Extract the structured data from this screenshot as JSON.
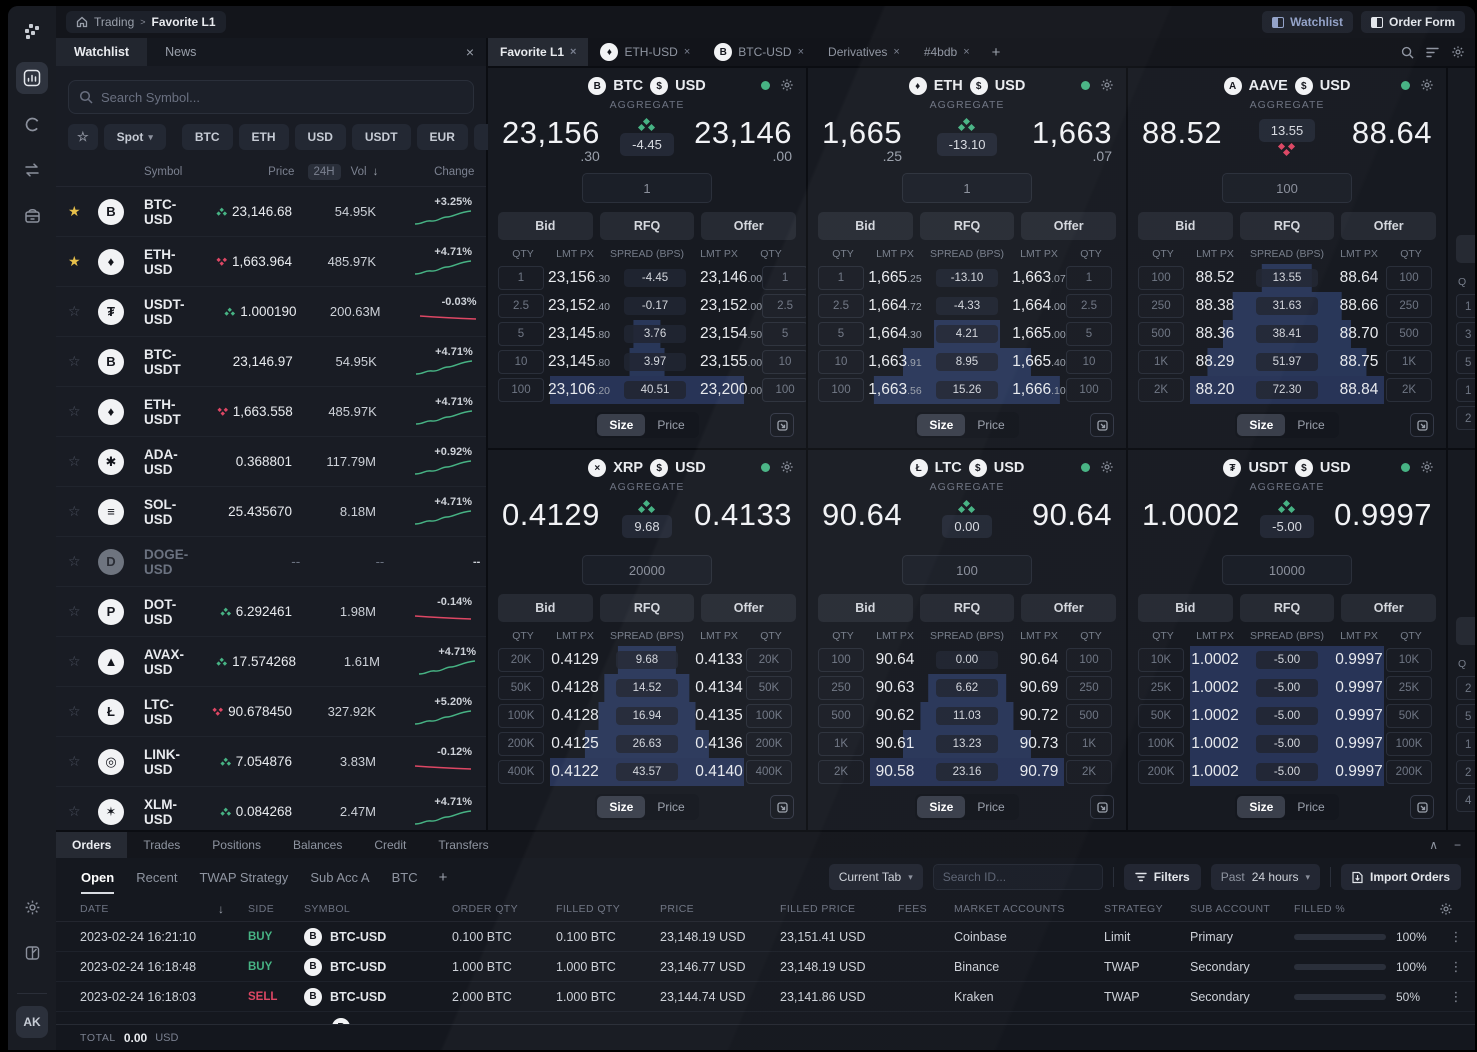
{
  "colors": {
    "green": "#47b384",
    "red": "#dd4764",
    "depth_bar": "#435fa8",
    "accent_blue": "#93a2c8"
  },
  "topbar": {
    "breadcrumb": {
      "root": "Trading",
      "separator": ">",
      "current": "Favorite L1"
    },
    "watchlist_button": "Watchlist",
    "order_form_button": "Order Form"
  },
  "sidebar": {
    "icons": [
      "logo",
      "markets",
      "refresh",
      "transfer",
      "vault",
      "settings",
      "theme",
      "avatar"
    ],
    "avatar_initials": "AK"
  },
  "watchlist": {
    "tabs": [
      {
        "label": "Watchlist",
        "active": true
      },
      {
        "label": "News",
        "active": false
      }
    ],
    "close_label": "×",
    "search_placeholder": "Search Symbol...",
    "market_type": "Spot",
    "filter_chips": [
      "BTC",
      "ETH",
      "USD",
      "USDT",
      "EUR"
    ],
    "headers": {
      "symbol": "Symbol",
      "price": "Price",
      "period": "24H",
      "vol": "Vol",
      "sort": "↓",
      "change": "Change"
    },
    "rows": [
      {
        "fav": true,
        "glyph": "B",
        "symbol": "BTC-USD",
        "dir": "up",
        "price": "23,146.68",
        "vol": "54.95K",
        "change": "+3.25%",
        "spark": "up",
        "muted": false
      },
      {
        "fav": true,
        "glyph": "♦",
        "symbol": "ETH-USD",
        "dir": "down",
        "price": "1,663.964",
        "vol": "485.97K",
        "change": "+4.71%",
        "spark": "up",
        "muted": false
      },
      {
        "fav": false,
        "glyph": "₮",
        "symbol": "USDT-USD",
        "dir": "up",
        "price": "1.000190",
        "vol": "200.63M",
        "change": "-0.03%",
        "spark": "down",
        "muted": false
      },
      {
        "fav": false,
        "glyph": "B",
        "symbol": "BTC-USDT",
        "dir": "none",
        "price": "23,146.97",
        "vol": "54.95K",
        "change": "+4.71%",
        "spark": "up",
        "muted": false
      },
      {
        "fav": false,
        "glyph": "♦",
        "symbol": "ETH-USDT",
        "dir": "down",
        "price": "1,663.558",
        "vol": "485.97K",
        "change": "+4.71%",
        "spark": "up",
        "muted": false
      },
      {
        "fav": false,
        "glyph": "✱",
        "symbol": "ADA-USD",
        "dir": "none",
        "price": "0.368801",
        "vol": "117.79M",
        "change": "+0.92%",
        "spark": "up",
        "muted": false
      },
      {
        "fav": false,
        "glyph": "≡",
        "symbol": "SOL-USD",
        "dir": "none",
        "price": "25.435670",
        "vol": "8.18M",
        "change": "+4.71%",
        "spark": "up",
        "muted": false
      },
      {
        "fav": false,
        "glyph": "D",
        "symbol": "DOGE-USD",
        "dir": "none",
        "price": "--",
        "vol": "--",
        "change": "--",
        "spark": "none",
        "muted": true
      },
      {
        "fav": false,
        "glyph": "P",
        "symbol": "DOT-USD",
        "dir": "up",
        "price": "6.292461",
        "vol": "1.98M",
        "change": "-0.14%",
        "spark": "down",
        "muted": false
      },
      {
        "fav": false,
        "glyph": "▲",
        "symbol": "AVAX-USD",
        "dir": "up",
        "price": "17.574268",
        "vol": "1.61M",
        "change": "+4.71%",
        "spark": "up",
        "muted": false
      },
      {
        "fav": false,
        "glyph": "Ł",
        "symbol": "LTC-USD",
        "dir": "down",
        "price": "90.678450",
        "vol": "327.92K",
        "change": "+5.20%",
        "spark": "up",
        "muted": false
      },
      {
        "fav": false,
        "glyph": "◎",
        "symbol": "LINK-USD",
        "dir": "up",
        "price": "7.054876",
        "vol": "3.83M",
        "change": "-0.12%",
        "spark": "down",
        "muted": false
      },
      {
        "fav": false,
        "glyph": "✶",
        "symbol": "XLM-USD",
        "dir": "up",
        "price": "0.084268",
        "vol": "2.47M",
        "change": "+4.71%",
        "spark": "up",
        "muted": false
      }
    ]
  },
  "market_tabs": {
    "items": [
      {
        "label": "Favorite L1",
        "icon": "",
        "active": true
      },
      {
        "label": "ETH-USD",
        "icon": "♦",
        "active": false
      },
      {
        "label": "BTC-USD",
        "icon": "B",
        "active": false
      },
      {
        "label": "Derivatives",
        "icon": "",
        "active": false
      },
      {
        "label": "#4bdb",
        "icon": "",
        "active": false
      }
    ],
    "plus": "+",
    "right_icons": [
      "search-icon",
      "layout-icon",
      "gear-icon"
    ]
  },
  "widgets_common": {
    "aggregate_label": "AGGREGATE",
    "buttons": [
      "Bid",
      "RFQ",
      "Offer"
    ],
    "ladder_headers": [
      "QTY",
      "LMT PX",
      "SPREAD (BPS)",
      "LMT PX",
      "QTY"
    ],
    "size_label": "Size",
    "price_label": "Price"
  },
  "widgets": [
    {
      "base": "BTC",
      "base_glyph": "B",
      "quote": "USD",
      "quote_glyph": "$",
      "bid_main": "23,156",
      "bid_dec": ".30",
      "ask_main": "23,146",
      "ask_dec": ".00",
      "spread": "-4.45",
      "spread_dir": "up",
      "spread_pos": "above",
      "qty_input": "1",
      "rows": [
        {
          "q": "1",
          "bid": "23,156",
          "bdec": ".30",
          "spr": "-4.45",
          "ask": "23,146",
          "adec": ".00",
          "depth": 0,
          "full": false
        },
        {
          "q": "2.5",
          "bid": "23,152",
          "bdec": ".40",
          "spr": "-0.17",
          "ask": "23,152",
          "adec": ".00",
          "depth": 0,
          "full": false
        },
        {
          "q": "5",
          "bid": "23,145",
          "bdec": ".80",
          "spr": "3.76",
          "ask": "23,154",
          "adec": ".50",
          "depth": 14,
          "full": false
        },
        {
          "q": "10",
          "bid": "23,145",
          "bdec": ".80",
          "spr": "3.97",
          "ask": "23,155",
          "adec": ".00",
          "depth": 18,
          "full": false
        },
        {
          "q": "100",
          "bid": "23,106",
          "bdec": ".20",
          "spr": "40.51",
          "ask": "23,200",
          "adec": ".00",
          "depth": 100,
          "full": true
        }
      ]
    },
    {
      "base": "ETH",
      "base_glyph": "♦",
      "quote": "USD",
      "quote_glyph": "$",
      "bid_main": "1,665",
      "bid_dec": ".25",
      "ask_main": "1,663",
      "ask_dec": ".07",
      "spread": "-13.10",
      "spread_dir": "up",
      "spread_pos": "above",
      "qty_input": "1",
      "rows": [
        {
          "q": "1",
          "bid": "1,665",
          "bdec": ".25",
          "spr": "-13.10",
          "ask": "1,663",
          "adec": ".07",
          "depth": 0,
          "full": false
        },
        {
          "q": "2.5",
          "bid": "1,664",
          "bdec": ".72",
          "spr": "-4.33",
          "ask": "1,664",
          "adec": ".00",
          "depth": 0,
          "full": false
        },
        {
          "q": "5",
          "bid": "1,664",
          "bdec": ".30",
          "spr": "4.21",
          "ask": "1,665",
          "adec": ".00",
          "depth": 34,
          "full": false
        },
        {
          "q": "10",
          "bid": "1,663",
          "bdec": ".91",
          "spr": "8.95",
          "ask": "1,665",
          "adec": ".40",
          "depth": 66,
          "full": false
        },
        {
          "q": "100",
          "bid": "1,663",
          "bdec": ".56",
          "spr": "15.26",
          "ask": "1,666",
          "adec": ".10",
          "depth": 96,
          "full": false
        }
      ]
    },
    {
      "base": "AAVE",
      "base_glyph": "A",
      "quote": "USD",
      "quote_glyph": "$",
      "bid_main": "88.52",
      "bid_dec": "",
      "ask_main": "88.64",
      "ask_dec": "",
      "spread": "13.55",
      "spread_dir": "down",
      "spread_pos": "below",
      "qty_input": "100",
      "rows": [
        {
          "q": "100",
          "bid": "88.52",
          "bdec": "",
          "spr": "13.55",
          "ask": "88.64",
          "adec": "",
          "depth": 26,
          "full": false
        },
        {
          "q": "250",
          "bid": "88.38",
          "bdec": "",
          "spr": "31.63",
          "ask": "88.66",
          "adec": "",
          "depth": 56,
          "full": false
        },
        {
          "q": "500",
          "bid": "88.36",
          "bdec": "",
          "spr": "38.41",
          "ask": "88.70",
          "adec": "",
          "depth": 66,
          "full": false
        },
        {
          "q": "1K",
          "bid": "88.29",
          "bdec": "",
          "spr": "51.97",
          "ask": "88.75",
          "adec": "",
          "depth": 82,
          "full": false
        },
        {
          "q": "2K",
          "bid": "88.20",
          "bdec": "",
          "spr": "72.30",
          "ask": "88.84",
          "adec": "",
          "depth": 100,
          "full": true
        }
      ]
    },
    {
      "base": "XRP",
      "base_glyph": "×",
      "quote": "USD",
      "quote_glyph": "$",
      "bid_main": "0.4129",
      "bid_dec": "",
      "ask_main": "0.4133",
      "ask_dec": "",
      "spread": "9.68",
      "spread_dir": "up",
      "spread_pos": "above",
      "qty_input": "20000",
      "rows": [
        {
          "q": "20K",
          "bid": "0.4129",
          "bdec": "",
          "spr": "9.68",
          "ask": "0.4133",
          "adec": "",
          "depth": 30,
          "full": false
        },
        {
          "q": "50K",
          "bid": "0.4128",
          "bdec": "",
          "spr": "14.52",
          "ask": "0.4134",
          "adec": "",
          "depth": 44,
          "full": false
        },
        {
          "q": "100K",
          "bid": "0.4128",
          "bdec": "",
          "spr": "16.94",
          "ask": "0.4135",
          "adec": "",
          "depth": 50,
          "full": false
        },
        {
          "q": "200K",
          "bid": "0.4125",
          "bdec": "",
          "spr": "26.63",
          "ask": "0.4136",
          "adec": "",
          "depth": 64,
          "full": false
        },
        {
          "q": "400K",
          "bid": "0.4122",
          "bdec": "",
          "spr": "43.57",
          "ask": "0.4140",
          "adec": "",
          "depth": 100,
          "full": true
        }
      ]
    },
    {
      "base": "LTC",
      "base_glyph": "Ł",
      "quote": "USD",
      "quote_glyph": "$",
      "bid_main": "90.64",
      "bid_dec": "",
      "ask_main": "90.64",
      "ask_dec": "",
      "spread": "0.00",
      "spread_dir": "up",
      "spread_pos": "above",
      "qty_input": "100",
      "rows": [
        {
          "q": "100",
          "bid": "90.64",
          "bdec": "",
          "spr": "0.00",
          "ask": "90.64",
          "adec": "",
          "depth": 0,
          "full": false
        },
        {
          "q": "250",
          "bid": "90.63",
          "bdec": "",
          "spr": "6.62",
          "ask": "90.69",
          "adec": "",
          "depth": 40,
          "full": false
        },
        {
          "q": "500",
          "bid": "90.62",
          "bdec": "",
          "spr": "11.03",
          "ask": "90.72",
          "adec": "",
          "depth": 48,
          "full": false
        },
        {
          "q": "1K",
          "bid": "90.61",
          "bdec": "",
          "spr": "13.23",
          "ask": "90.73",
          "adec": "",
          "depth": 66,
          "full": false
        },
        {
          "q": "2K",
          "bid": "90.58",
          "bdec": "",
          "spr": "23.16",
          "ask": "90.79",
          "adec": "",
          "depth": 100,
          "full": true
        }
      ]
    },
    {
      "base": "USDT",
      "base_glyph": "₮",
      "quote": "USD",
      "quote_glyph": "$",
      "bid_main": "1.0002",
      "bid_dec": "",
      "ask_main": "0.9997",
      "ask_dec": "",
      "spread": "-5.00",
      "spread_dir": "up",
      "spread_pos": "above",
      "qty_input": "10000",
      "rows": [
        {
          "q": "10K",
          "bid": "1.0002",
          "bdec": "",
          "spr": "-5.00",
          "ask": "0.9997",
          "adec": "",
          "depth": 100,
          "full": true
        },
        {
          "q": "25K",
          "bid": "1.0002",
          "bdec": "",
          "spr": "-5.00",
          "ask": "0.9997",
          "adec": "",
          "depth": 100,
          "full": true
        },
        {
          "q": "50K",
          "bid": "1.0002",
          "bdec": "",
          "spr": "-5.00",
          "ask": "0.9997",
          "adec": "",
          "depth": 100,
          "full": true
        },
        {
          "q": "100K",
          "bid": "1.0002",
          "bdec": "",
          "spr": "-5.00",
          "ask": "0.9997",
          "adec": "",
          "depth": 100,
          "full": true
        },
        {
          "q": "200K",
          "bid": "1.0002",
          "bdec": "",
          "spr": "-5.00",
          "ask": "0.9997",
          "adec": "",
          "depth": 100,
          "full": true
        }
      ]
    }
  ],
  "partial_column": {
    "header": "Q",
    "top_qtys": [
      "1",
      "3",
      "5",
      "1",
      "2"
    ],
    "bottom_qtys": [
      "2",
      "5",
      "1",
      "2",
      "4"
    ]
  },
  "orders_panel": {
    "tabs": [
      {
        "label": "Orders",
        "active": true
      },
      {
        "label": "Trades",
        "active": false
      },
      {
        "label": "Positions",
        "active": false
      },
      {
        "label": "Balances",
        "active": false
      },
      {
        "label": "Credit",
        "active": false
      },
      {
        "label": "Transfers",
        "active": false
      }
    ],
    "collapse_icons": [
      "∧",
      "−"
    ],
    "subtabs": [
      {
        "label": "Open",
        "active": true
      },
      {
        "label": "Recent",
        "active": false
      },
      {
        "label": "TWAP Strategy",
        "active": false
      },
      {
        "label": "Sub Acc A",
        "active": false
      },
      {
        "label": "BTC",
        "active": false
      }
    ],
    "subtab_plus": "+",
    "controls": {
      "scope": "Current Tab",
      "search_placeholder": "Search ID...",
      "filters": "Filters",
      "range_prefix": "Past",
      "range": "24 hours",
      "import": "Import Orders"
    },
    "headers": [
      "DATE",
      "SIDE",
      "SYMBOL",
      "ORDER QTY",
      "FILLED QTY",
      "PRICE",
      "FILLED PRICE",
      "FEES",
      "MARKET ACCOUNTS",
      "STRATEGY",
      "SUB ACCOUNT",
      "FILLED %"
    ],
    "sort_icon": "↓",
    "rows": [
      {
        "date": "2023-02-24 16:21:10",
        "side": "BUY",
        "glyph": "B",
        "symbol": "BTC-USD",
        "order_qty": "0.100 BTC",
        "filled_qty": "0.100 BTC",
        "price": "23,148.19 USD",
        "filled_price": "23,151.41 USD",
        "fees": "",
        "market": "Coinbase",
        "strategy": "Limit",
        "sub": "Primary",
        "filled_pct": "100%",
        "fill": 100
      },
      {
        "date": "2023-02-24 16:18:48",
        "side": "BUY",
        "glyph": "B",
        "symbol": "BTC-USD",
        "order_qty": "1.000 BTC",
        "filled_qty": "1.000 BTC",
        "price": "23,146.77 USD",
        "filled_price": "23,148.19 USD",
        "fees": "",
        "market": "Binance",
        "strategy": "TWAP",
        "sub": "Secondary",
        "filled_pct": "100%",
        "fill": 100
      },
      {
        "date": "2023-02-24 16:18:03",
        "side": "SELL",
        "glyph": "B",
        "symbol": "BTC-USD",
        "order_qty": "2.000 BTC",
        "filled_qty": "1.000 BTC",
        "price": "23,144.74 USD",
        "filled_price": "23,141.86 USD",
        "fees": "",
        "market": "Kraken",
        "strategy": "TWAP",
        "sub": "Secondary",
        "filled_pct": "50%",
        "fill": 50
      }
    ],
    "total": {
      "label": "TOTAL",
      "value": "0.00",
      "currency": "USD"
    }
  }
}
